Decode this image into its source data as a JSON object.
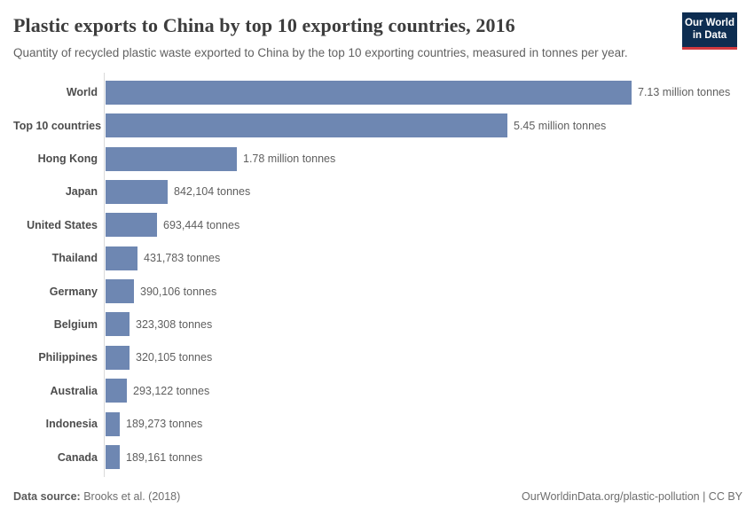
{
  "header": {
    "title": "Plastic exports to China by top 10 exporting countries, 2016",
    "subtitle": "Quantity of recycled plastic waste exported to China by the top 10 exporting countries, measured in tonnes per year.",
    "logo": {
      "line1": "Our World",
      "line2": "in Data"
    }
  },
  "chart_data": {
    "type": "bar",
    "orientation": "horizontal",
    "title": "Plastic exports to China by top 10 exporting countries, 2016",
    "unit": "tonnes",
    "categories": [
      "World",
      "Top 10 countries",
      "Hong Kong",
      "Japan",
      "United States",
      "Thailand",
      "Germany",
      "Belgium",
      "Philippines",
      "Australia",
      "Indonesia",
      "Canada"
    ],
    "values": [
      7130000,
      5450000,
      1780000,
      842104,
      693444,
      431783,
      390106,
      323308,
      320105,
      293122,
      189273,
      189161
    ],
    "value_labels": [
      "7.13 million tonnes",
      "5.45 million tonnes",
      "1.78 million tonnes",
      "842,104 tonnes",
      "693,444 tonnes",
      "431,783 tonnes",
      "390,106 tonnes",
      "323,308 tonnes",
      "320,105 tonnes",
      "293,122 tonnes",
      "189,273 tonnes",
      "189,161 tonnes"
    ],
    "xlim": [
      0,
      7130000
    ],
    "grid": false,
    "legend": false
  },
  "footer": {
    "source_label": "Data source:",
    "source_value": "Brooks et al. (2018)",
    "license": "OurWorldinData.org/plastic-pollution | CC BY"
  },
  "colors": {
    "bar": "#6e87b2",
    "axis": "#d9d9d9",
    "logo_bg": "#0d2d51",
    "logo_accent": "#d0393f",
    "title_text": "#3d3d3d",
    "muted_text": "#616161"
  }
}
